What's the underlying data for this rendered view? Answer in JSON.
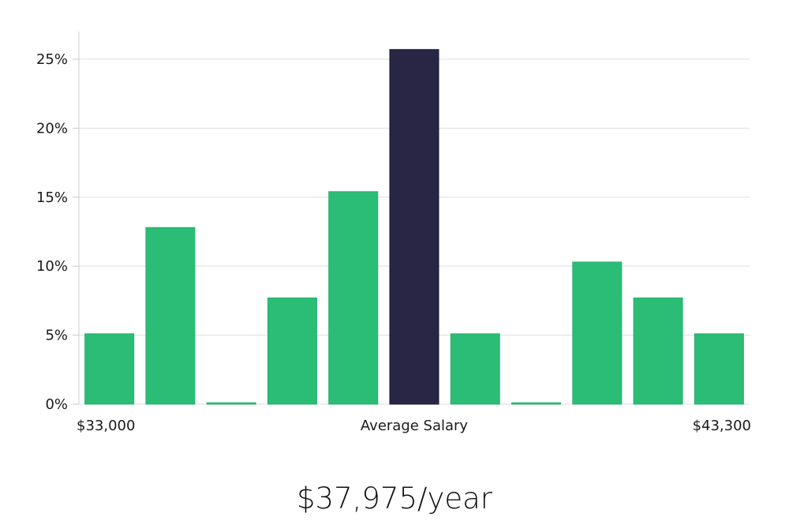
{
  "chart_data": {
    "type": "bar",
    "categories": [
      "1",
      "2",
      "3",
      "4",
      "5",
      "6",
      "7",
      "8",
      "9",
      "10",
      "11"
    ],
    "values": [
      5.1,
      12.8,
      0.1,
      7.7,
      15.4,
      25.7,
      5.1,
      0.1,
      10.3,
      7.7,
      5.1
    ],
    "highlight_index": 5,
    "ylim": [
      0,
      27
    ],
    "yticks": [
      0,
      5,
      10,
      15,
      20,
      25
    ],
    "ytick_labels": [
      "0%",
      "5%",
      "10%",
      "15%",
      "20%",
      "25%"
    ],
    "x_start_label": "$33,000",
    "x_center_label": "Average Salary",
    "x_end_label": "$43,300",
    "grid": true,
    "colors": {
      "bar": "#2bbd76",
      "highlight": "#282545",
      "grid": "#dddddd",
      "axis": "#cccccc"
    }
  },
  "summary": {
    "average_salary": "$37,975/year"
  }
}
